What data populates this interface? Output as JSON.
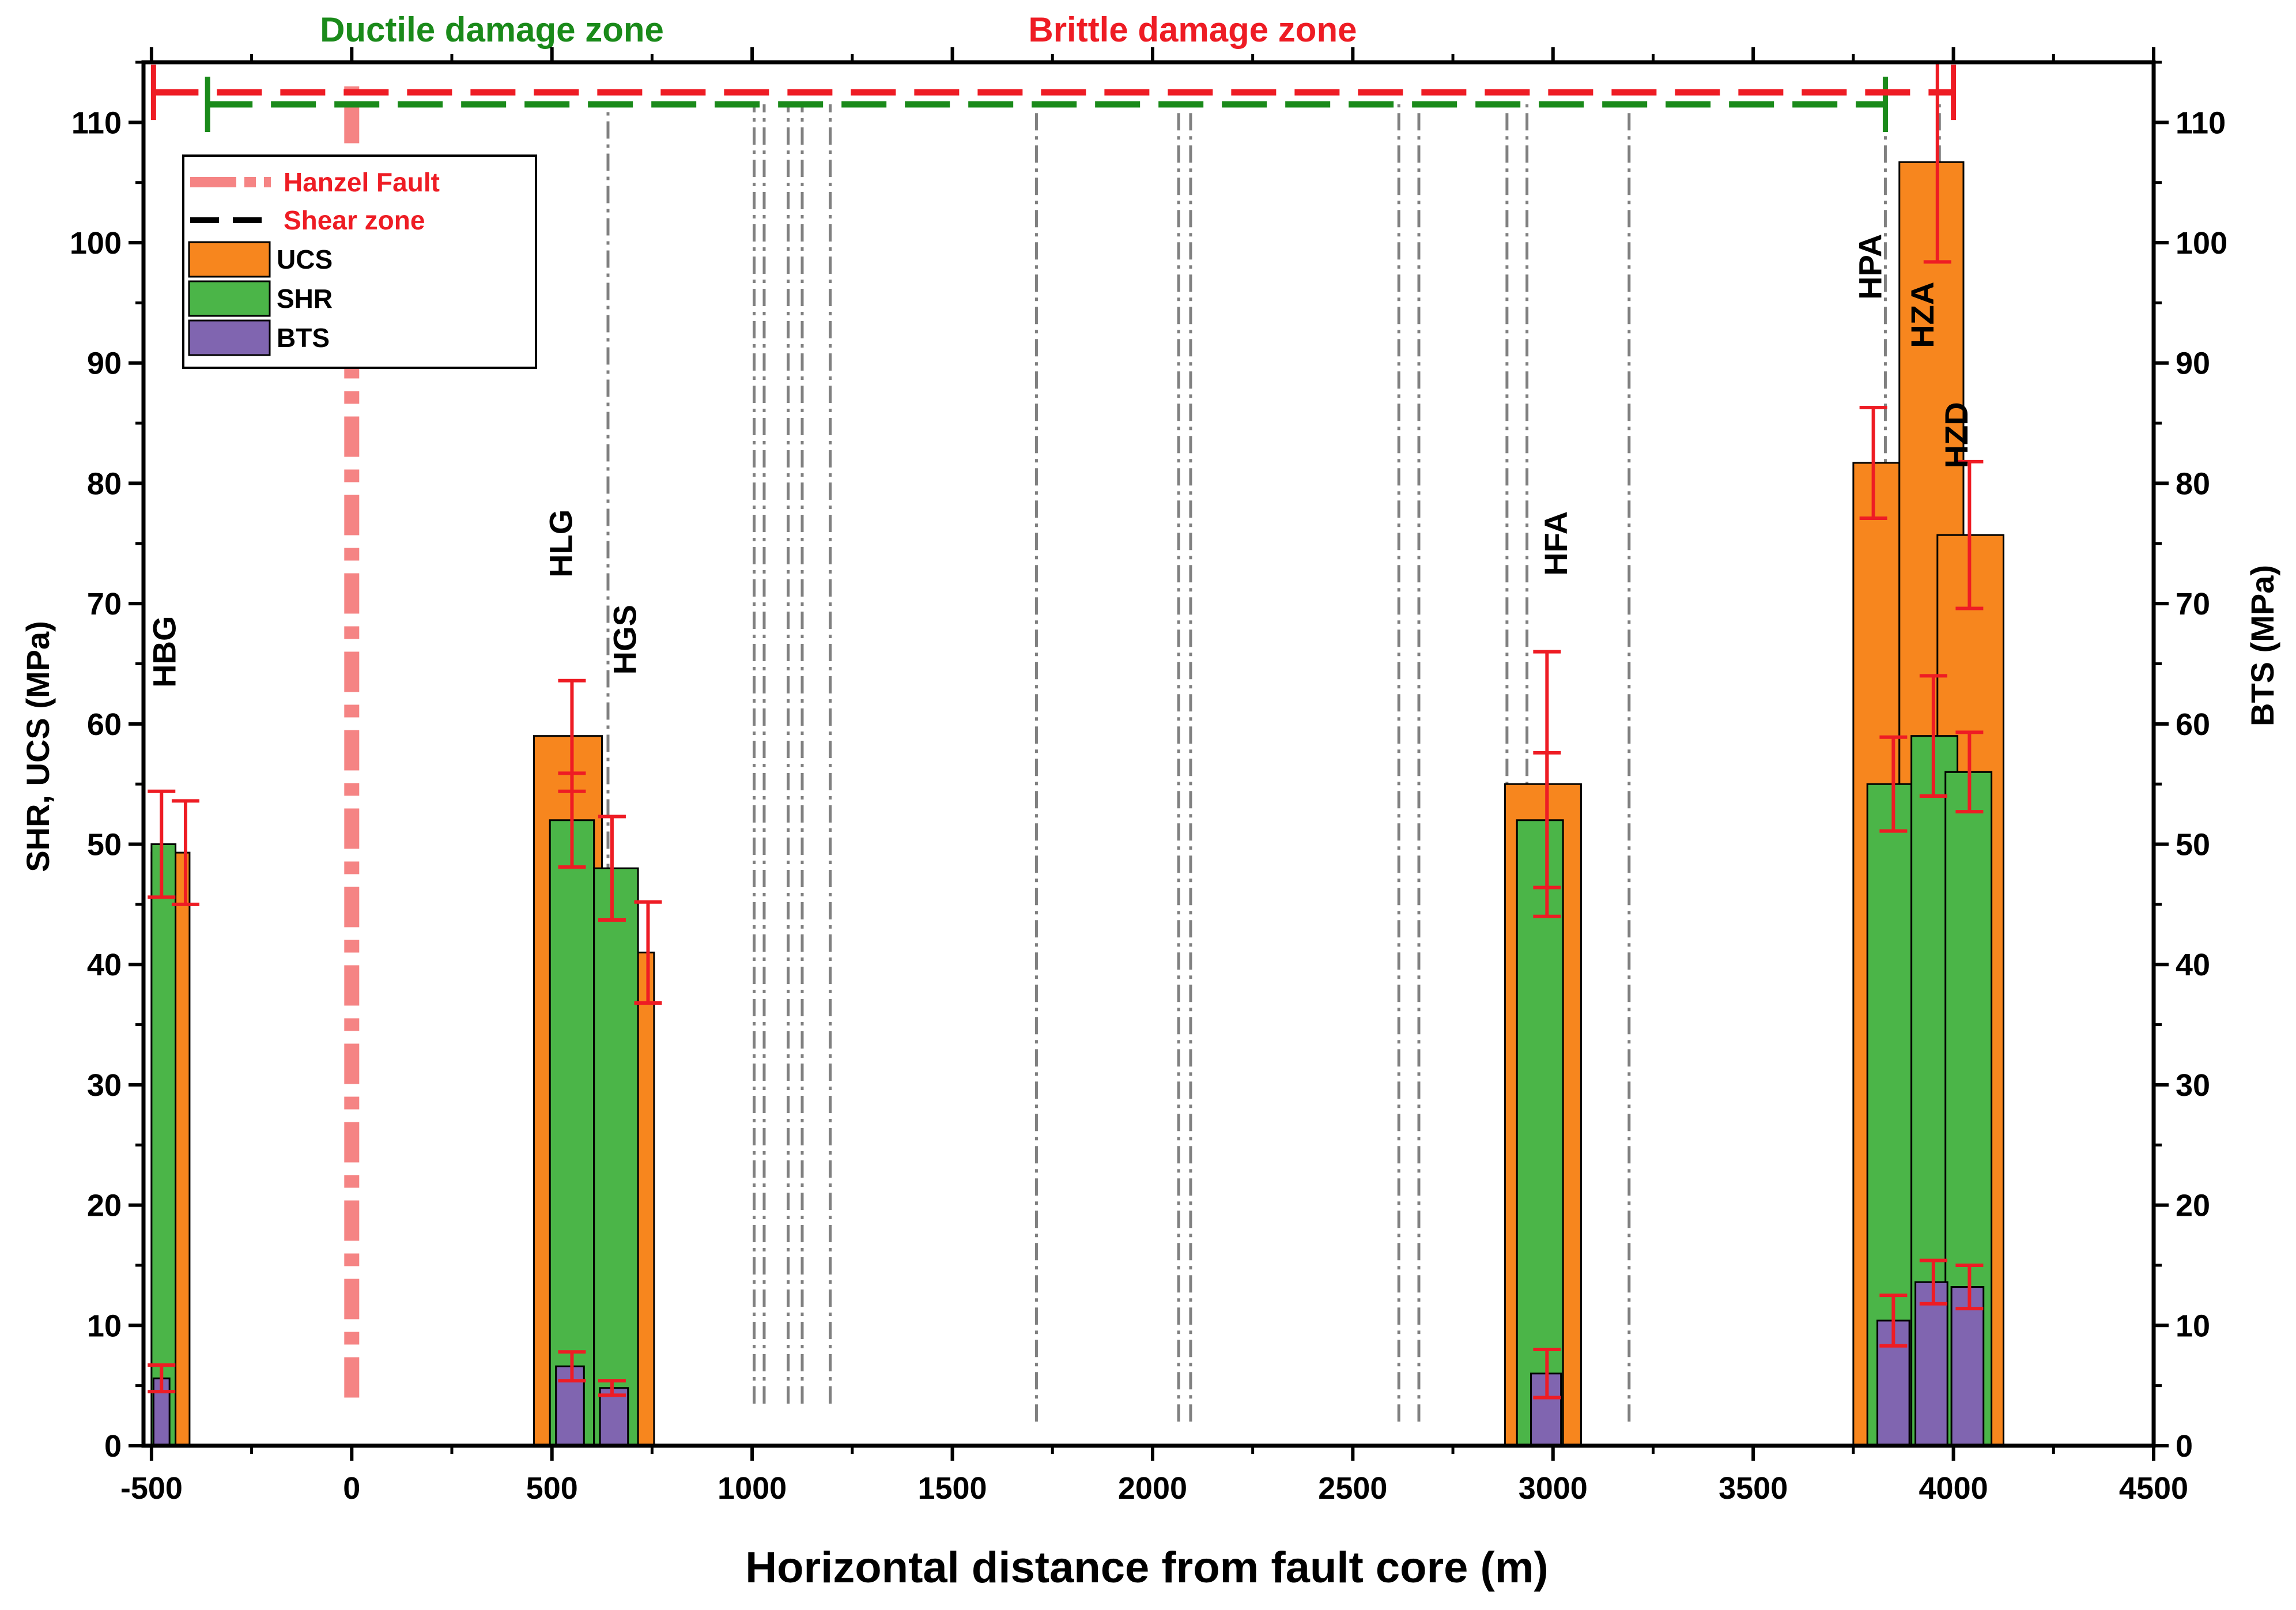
{
  "chart_data": {
    "type": "bar",
    "title": "",
    "xlabel": "Horizontal distance from fault core (m)",
    "ylabel_left": "SHR, UCS (MPa)",
    "ylabel_right": "BTS (MPa)",
    "xlim": [
      -520,
      4500
    ],
    "ylim": [
      0,
      115
    ],
    "x_ticks": [
      -500,
      0,
      500,
      1000,
      1500,
      2000,
      2500,
      3000,
      3500,
      4000,
      4500
    ],
    "x_tick_labels": [
      "-500",
      "0",
      "500",
      "1000",
      "1500",
      "2000",
      "2500",
      "3000",
      "3500",
      "4000",
      "4500"
    ],
    "y_ticks": [
      0,
      10,
      20,
      30,
      40,
      50,
      60,
      70,
      80,
      90,
      100,
      110
    ],
    "y_tick_labels": [
      "0",
      "10",
      "20",
      "30",
      "40",
      "50",
      "60",
      "70",
      "80",
      "90",
      "100",
      "110"
    ],
    "colors": {
      "UCS": "#f7861e",
      "SHR": "#4bb548",
      "BTS": "#8065b0",
      "error": "#ee1c24",
      "fault": "#f58484",
      "brittle": "#ee1c24",
      "ductile": "#1a8a1a",
      "shear_zone_line": "#808080"
    },
    "series": [
      {
        "name": "UCS",
        "bars": [
          {
            "x0": -500,
            "x1": -405,
            "value": 49.3,
            "err": 4.3,
            "err_x": -415
          },
          {
            "x0": 455,
            "x1": 625,
            "value": 59,
            "err": 4.6,
            "err_x": 550
          },
          {
            "x0": 625,
            "x1": 755,
            "value": 41,
            "err": 4.2,
            "err_x": 740
          },
          {
            "x0": 2880,
            "x1": 3070,
            "value": 55,
            "err": 11,
            "err_x": 2985
          },
          {
            "x0": 3750,
            "x1": 3865,
            "value": 81.7,
            "err": 4.6,
            "err_x": 3800
          },
          {
            "x0": 3865,
            "x1": 4025,
            "value": 106.7,
            "err": 8.3,
            "err_x": 3960
          },
          {
            "x0": 3960,
            "x1": 4125,
            "value": 75.7,
            "err": 6.1,
            "err_x": 4040
          }
        ]
      },
      {
        "name": "SHR",
        "bars": [
          {
            "x0": -500,
            "x1": -440,
            "value": 50,
            "err": 4.4,
            "err_x": -475
          },
          {
            "x0": 495,
            "x1": 605,
            "value": 52,
            "err": 3.9,
            "err_x": 550
          },
          {
            "x0": 605,
            "x1": 715,
            "value": 48,
            "err": 4.3,
            "err_x": 650
          },
          {
            "x0": 2910,
            "x1": 3025,
            "value": 52,
            "err": 5.6,
            "err_x": 2985
          },
          {
            "x0": 3785,
            "x1": 3895,
            "value": 55,
            "err": 3.9,
            "err_x": 3850
          },
          {
            "x0": 3895,
            "x1": 4010,
            "value": 59,
            "err": 5,
            "err_x": 3950
          },
          {
            "x0": 3980,
            "x1": 4095,
            "value": 56,
            "err": 3.3,
            "err_x": 4040
          }
        ]
      },
      {
        "name": "BTS",
        "bars": [
          {
            "x0": -495,
            "x1": -455,
            "value": 5.6,
            "err": 1.1,
            "err_x": -475
          },
          {
            "x0": 510,
            "x1": 580,
            "value": 6.6,
            "err": 1.2,
            "err_x": 550
          },
          {
            "x0": 620,
            "x1": 690,
            "value": 4.8,
            "err": 0.6,
            "err_x": 650
          },
          {
            "x0": 2945,
            "x1": 3020,
            "value": 6,
            "err": 2,
            "err_x": 2985
          },
          {
            "x0": 3810,
            "x1": 3890,
            "value": 10.4,
            "err": 2.1,
            "err_x": 3850
          },
          {
            "x0": 3905,
            "x1": 3985,
            "value": 13.6,
            "err": 1.8,
            "err_x": 3950
          },
          {
            "x0": 3995,
            "x1": 4075,
            "value": 13.2,
            "err": 1.8,
            "err_x": 4040
          }
        ]
      }
    ],
    "sample_labels": [
      {
        "text": "HBG",
        "x": -440,
        "y": 66
      },
      {
        "text": "HLG",
        "x": 550,
        "y": 75
      },
      {
        "text": "HGS",
        "x": 710,
        "y": 67
      },
      {
        "text": "HFA",
        "x": 3035,
        "y": 75
      },
      {
        "text": "HPA",
        "x": 3820,
        "y": 98
      },
      {
        "text": "HZA",
        "x": 3950,
        "y": 94
      },
      {
        "text": "HZD",
        "x": 4035,
        "y": 84
      }
    ],
    "fault": {
      "name": "Hanzel Fault",
      "x": 0,
      "y_from": 4,
      "y_to": 113
    },
    "shear_zones": [
      {
        "x": 640,
        "y_from": 4,
        "y_to": 111.5
      },
      {
        "x": 1005,
        "y_from": 3.5,
        "y_to": 111.5
      },
      {
        "x": 1030,
        "y_from": 3.5,
        "y_to": 111.5
      },
      {
        "x": 1090,
        "y_from": 3.5,
        "y_to": 111.5
      },
      {
        "x": 1125,
        "y_from": 3.5,
        "y_to": 111.5
      },
      {
        "x": 1195,
        "y_from": 3.5,
        "y_to": 111.5
      },
      {
        "x": 1710,
        "y_from": 2,
        "y_to": 111.5
      },
      {
        "x": 2065,
        "y_from": 2,
        "y_to": 111.5
      },
      {
        "x": 2095,
        "y_from": 2,
        "y_to": 111.5
      },
      {
        "x": 2615,
        "y_from": 2,
        "y_to": 111.5
      },
      {
        "x": 2665,
        "y_from": 2,
        "y_to": 111.5
      },
      {
        "x": 2885,
        "y_from": 2,
        "y_to": 111.5
      },
      {
        "x": 2935,
        "y_from": 2,
        "y_to": 111.5
      },
      {
        "x": 3190,
        "y_from": 2,
        "y_to": 111.5
      },
      {
        "x": 3830,
        "y_from": 2,
        "y_to": 111.5
      },
      {
        "x": 3965,
        "y_from": 2,
        "y_to": 111.5
      }
    ],
    "zones": [
      {
        "name": "Ductile damage zone",
        "x_from": -360,
        "x_to": 3830,
        "y": 111.5,
        "color_key": "ductile",
        "label_x": 350
      },
      {
        "name": "Brittle damage zone",
        "x_from": -495,
        "x_to": 4000,
        "y": 112.5,
        "color_key": "brittle",
        "label_x": 2100
      }
    ],
    "legend": {
      "position": "top-left",
      "entries": [
        {
          "label": "Hanzel Fault",
          "symbol": "dashdot",
          "color_key": "fault",
          "text_color": "#ee1c24"
        },
        {
          "label": "Shear zone",
          "symbol": "dash",
          "color_key": "black",
          "text_color": "#ee1c24"
        },
        {
          "label": "UCS",
          "symbol": "box",
          "color_key": "UCS",
          "text_color": "#000000"
        },
        {
          "label": "SHR",
          "symbol": "box",
          "color_key": "SHR",
          "text_color": "#000000"
        },
        {
          "label": "BTS",
          "symbol": "box",
          "color_key": "BTS",
          "text_color": "#000000"
        }
      ]
    }
  }
}
